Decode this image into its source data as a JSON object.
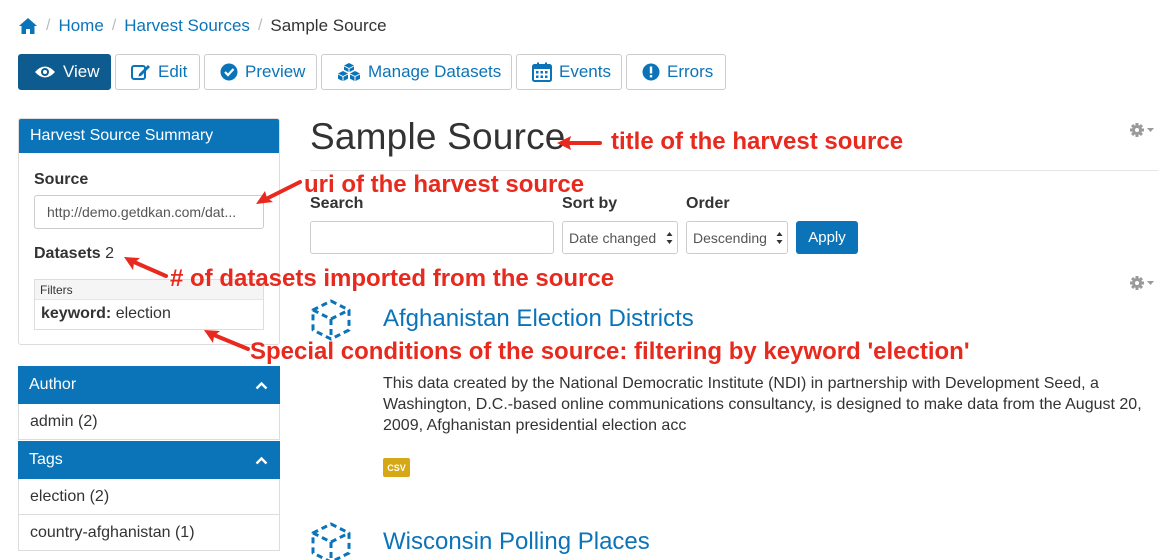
{
  "breadcrumb": {
    "home_icon": "home-icon",
    "items": [
      "Home",
      "Harvest Sources"
    ],
    "separator": "/",
    "current": "Sample Source"
  },
  "tabs": [
    {
      "label": "View",
      "icon": "eye-icon",
      "active": true
    },
    {
      "label": "Edit",
      "icon": "edit-icon",
      "active": false
    },
    {
      "label": "Preview",
      "icon": "check-circle-icon",
      "active": false
    },
    {
      "label": "Manage Datasets",
      "icon": "cubes-icon",
      "active": false
    },
    {
      "label": "Events",
      "icon": "calendar-icon",
      "active": false
    },
    {
      "label": "Errors",
      "icon": "exclamation-circle-icon",
      "active": false
    }
  ],
  "summary": {
    "title": "Harvest Source Summary",
    "source_label": "Source",
    "source_value": "http://demo.getdkan.com/dat...",
    "datasets_label": "Datasets",
    "datasets_count": "2",
    "filters_label": "Filters",
    "filter_key": "keyword:",
    "filter_value": "election"
  },
  "facets": [
    {
      "title": "Author",
      "items": [
        "admin (2)"
      ]
    },
    {
      "title": "Tags",
      "items": [
        "election (2)",
        "country-afghanistan (1)"
      ]
    }
  ],
  "page_title": "Sample Source",
  "search_form": {
    "search_label": "Search",
    "search_value": "",
    "sort_label": "Sort by",
    "sort_value": "Date changed",
    "order_label": "Order",
    "order_value": "Descending",
    "apply_label": "Apply"
  },
  "datasets": [
    {
      "title": "Afghanistan Election Districts",
      "description": "This data created by the National Democratic Institute (NDI) in partnership with Development Seed, a Washington, D.C.-based online communications consultancy, is designed to make data from the August 20, 2009, Afghanistan presidential election acc",
      "format": "CSV"
    },
    {
      "title": "Wisconsin Polling Places",
      "description": "",
      "format": ""
    }
  ],
  "annotations": {
    "title": "title of the harvest source",
    "uri": "uri of the harvest source",
    "count": "# of datasets imported from the source",
    "conditions": "Special conditions of the source: filtering by keyword 'election'"
  },
  "colors": {
    "primary": "#0b74b8",
    "active_tab": "#0d5b8f",
    "annotation": "#e8291e",
    "badge": "#d6a816"
  }
}
